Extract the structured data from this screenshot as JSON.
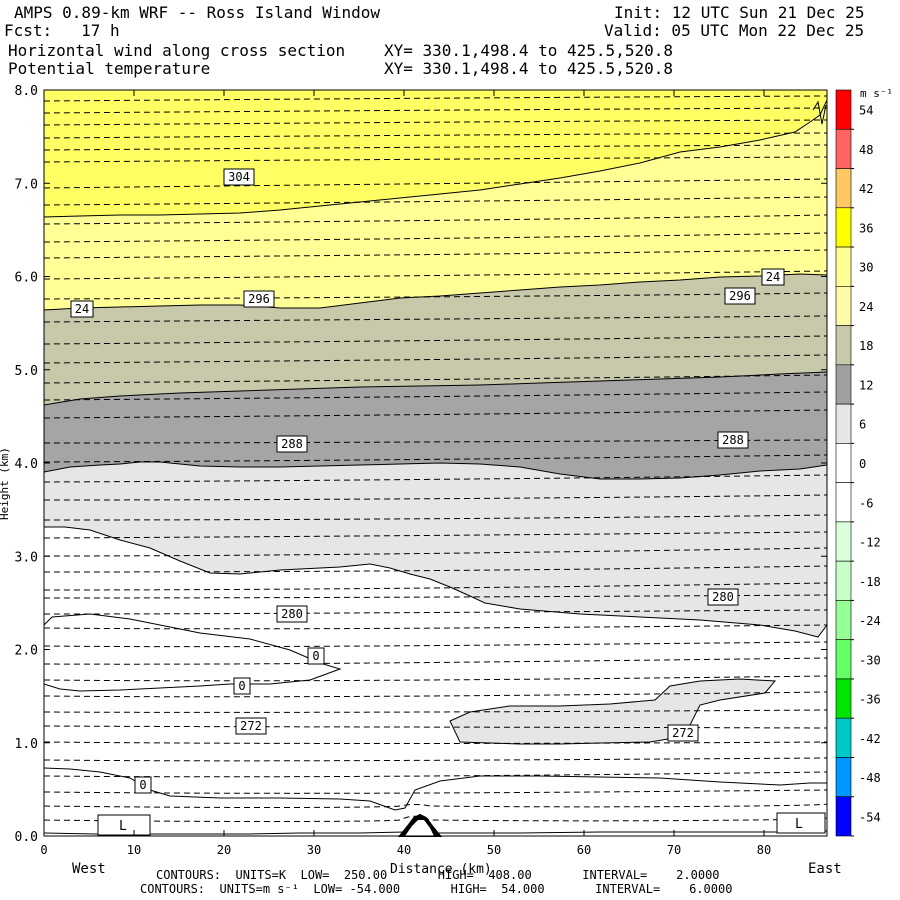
{
  "header": {
    "title": "AMPS 0.89-km WRF -- Ross Island Window",
    "init": "Init: 12 UTC Sun 21 Dec 25",
    "fcst": "Fcst:   17 h",
    "valid": "Valid: 05 UTC Mon 22 Dec 25",
    "field1": "Horizontal wind along cross section",
    "field1_xy": "XY= 330.1,498.4 to 425.5,520.8",
    "field2": "Potential temperature",
    "field2_xy": "XY= 330.1,498.4 to 425.5,520.8"
  },
  "footer": {
    "line1": "CONTOURS:  UNITS=K  LOW=  250.00       HIGH=  408.00       INTERVAL=    2.0000",
    "line2": "CONTOURS:  UNITS=m s⁻¹  LOW= -54.000       HIGH=  54.000       INTERVAL=    6.0000"
  },
  "chart_data": {
    "type": "contour cross-section",
    "xlabel": "Distance (km)",
    "ylabel": "Height (km)",
    "xlim": [
      0,
      87
    ],
    "ylim": [
      0,
      8
    ],
    "x_ticks": [
      0,
      10,
      20,
      30,
      40,
      50,
      60,
      70,
      80
    ],
    "y_ticks": [
      "0.0",
      "1.0",
      "2.0",
      "3.0",
      "4.0",
      "5.0",
      "6.0",
      "7.0",
      "8.0"
    ],
    "x_end_labels": {
      "left": "West",
      "right": "East"
    },
    "colorbar": {
      "units": "m s⁻¹",
      "levels": [
        54,
        48,
        42,
        36,
        30,
        24,
        18,
        12,
        6,
        0,
        -6,
        -12,
        -18,
        -24,
        -30,
        -36,
        -42,
        -48,
        -54
      ],
      "colors": [
        "#ff0000",
        "#ff6464",
        "#ffc864",
        "#ffff00",
        "#ffff96",
        "#fffaaa",
        "#c8c8aa",
        "#a0a0a0",
        "#e6e6e6",
        "#ffffff",
        "#ffffff",
        "#dcffdc",
        "#c8ffc8",
        "#96ff96",
        "#64ff64",
        "#00e600",
        "#00c8c8",
        "#0096ff",
        "#0000ff"
      ]
    },
    "wind_bands": [
      {
        "range": "30-36",
        "color": "#ffff64"
      },
      {
        "range": "24-30",
        "color": "#ffff96"
      },
      {
        "range": "18-24",
        "color": "#c8c8aa"
      },
      {
        "range": "12-18",
        "color": "#a5a5a5"
      },
      {
        "range": "6-12",
        "color": "#e6e6e6"
      }
    ],
    "wind_contour_labels": [
      "24",
      "24",
      "0",
      "0",
      "0"
    ],
    "wind_low_markers": [
      "L",
      "L"
    ],
    "theta_contour_labels": [
      "304",
      "296",
      "296",
      "288",
      "288",
      "280",
      "280",
      "272",
      "272"
    ],
    "theta_interval_K": 2,
    "wind_interval_ms": 6
  }
}
